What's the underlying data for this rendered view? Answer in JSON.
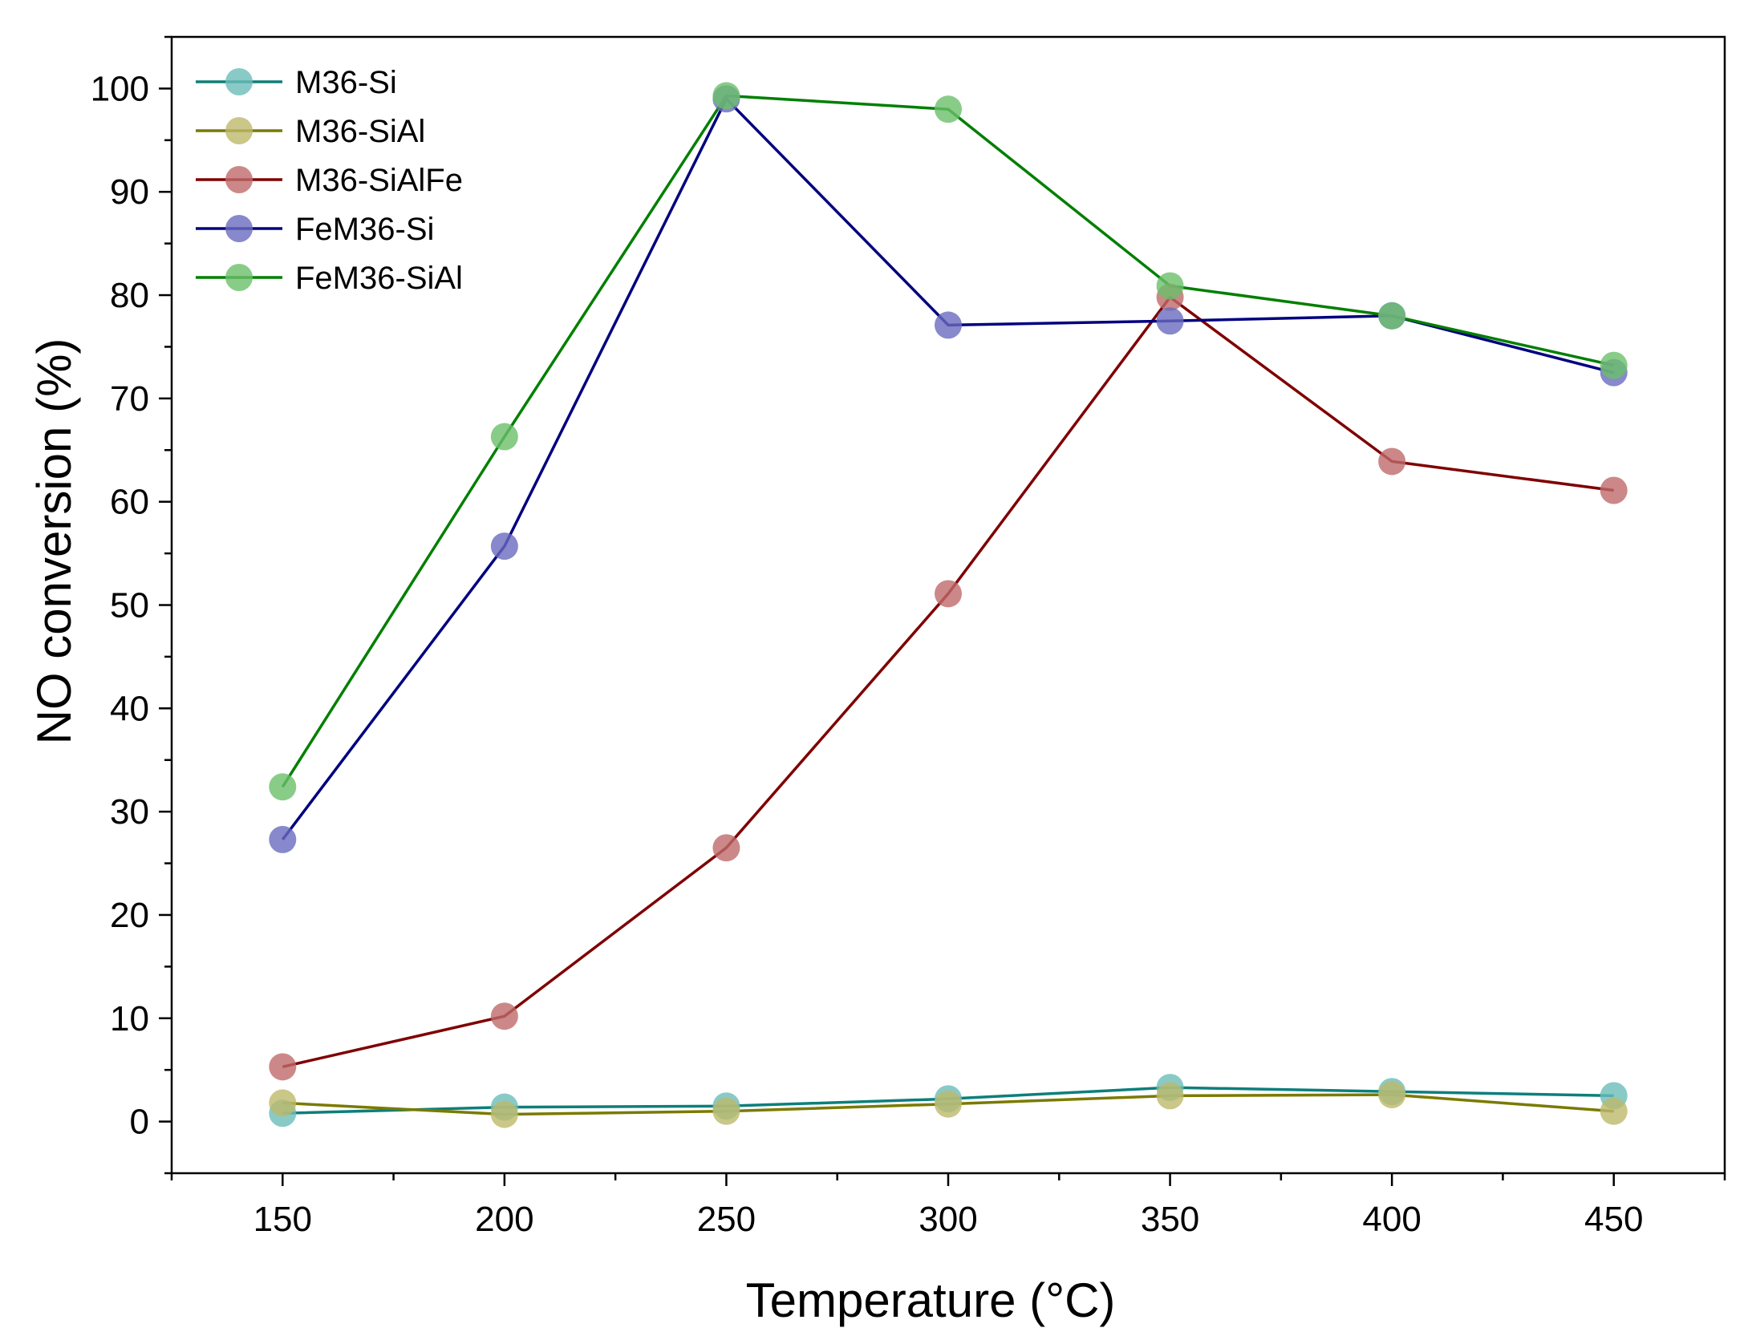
{
  "chart_data": {
    "type": "line",
    "title": "",
    "xlabel": "Temperature (°C)",
    "ylabel": "NO conversion (%)",
    "xlim": [
      125,
      475
    ],
    "ylim": [
      -5,
      105
    ],
    "x_ticks": [
      150,
      200,
      250,
      300,
      350,
      400,
      450
    ],
    "y_ticks": [
      0,
      10,
      20,
      30,
      40,
      50,
      60,
      70,
      80,
      90,
      100
    ],
    "x_tick_labels": [
      "150",
      "200",
      "250",
      "300",
      "350",
      "400",
      "450"
    ],
    "y_tick_labels": [
      "0",
      "10",
      "20",
      "30",
      "40",
      "50",
      "60",
      "70",
      "80",
      "90",
      "100"
    ],
    "legend_position": "top-left",
    "grid": false,
    "x": [
      150,
      200,
      250,
      300,
      350,
      400,
      450
    ],
    "series": [
      {
        "name": "M36-Si",
        "line_color": "#0d7f7a",
        "marker_color": "#6bbdb9",
        "values": [
          0.8,
          1.4,
          1.5,
          2.2,
          3.3,
          2.9,
          2.5
        ]
      },
      {
        "name": "M36-SiAl",
        "line_color": "#7a7a00",
        "marker_color": "#bdb96a",
        "values": [
          1.8,
          0.7,
          1.0,
          1.7,
          2.5,
          2.6,
          1.0
        ]
      },
      {
        "name": "M36-SiAlFe",
        "line_color": "#7f0000",
        "marker_color": "#bf6a6a",
        "values": [
          5.3,
          10.2,
          26.5,
          51.1,
          79.8,
          63.9,
          61.1
        ]
      },
      {
        "name": "FeM36-Si",
        "line_color": "#00007f",
        "marker_color": "#6a6abf",
        "values": [
          27.3,
          55.7,
          99.0,
          77.1,
          77.5,
          78.0,
          72.5
        ]
      },
      {
        "name": "FeM36-SiAl",
        "line_color": "#007f00",
        "marker_color": "#6abf6a",
        "values": [
          32.4,
          66.3,
          99.3,
          98.0,
          80.9,
          78.0,
          73.2
        ]
      }
    ]
  }
}
